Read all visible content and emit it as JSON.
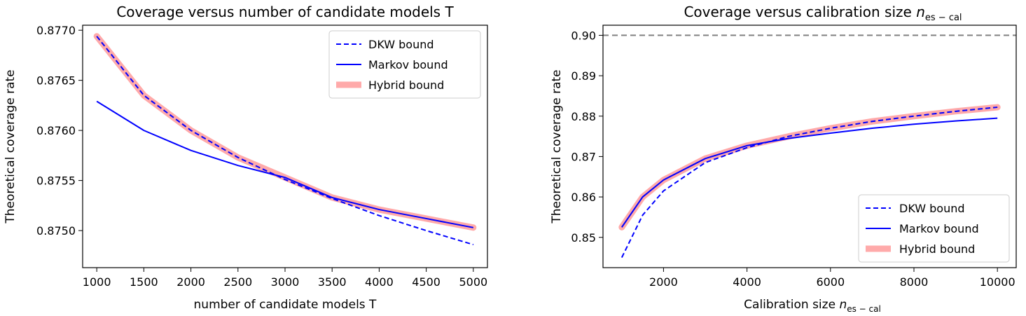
{
  "chart_data": [
    {
      "type": "line",
      "title": "Coverage versus number of candidate models T",
      "xlabel": "number of candidate models T",
      "ylabel": "Theoretical coverage rate",
      "xlim": [
        850,
        5150
      ],
      "ylim": [
        0.87463,
        0.87705
      ],
      "xticks": [
        1000,
        1500,
        2000,
        2500,
        3000,
        3500,
        4000,
        4500,
        5000
      ],
      "xtick_labels": [
        "1000",
        "1500",
        "2000",
        "2500",
        "3000",
        "3500",
        "4000",
        "4500",
        "5000"
      ],
      "yticks": [
        0.875,
        0.8755,
        0.876,
        0.8765,
        0.877
      ],
      "ytick_labels": [
        "0.8750",
        "0.8755",
        "0.8760",
        "0.8765",
        "0.8770"
      ],
      "legend_position": "upper right",
      "x": [
        1000,
        1500,
        2000,
        2500,
        3000,
        3500,
        4000,
        4500,
        5000
      ],
      "series": [
        {
          "name": "DKW bound",
          "style": "dashed",
          "color": "#0000ff",
          "values": [
            0.87694,
            0.87635,
            0.876,
            0.87573,
            0.87551,
            0.87532,
            0.87515,
            0.875,
            0.87486
          ]
        },
        {
          "name": "Markov bound",
          "style": "solid",
          "color": "#0000ff",
          "values": [
            0.87629,
            0.876,
            0.8758,
            0.87565,
            0.87553,
            0.87533,
            0.87521,
            0.87512,
            0.87503
          ]
        },
        {
          "name": "Hybrid bound",
          "style": "thick",
          "color": "#ffaaaa",
          "values": [
            0.87694,
            0.87635,
            0.876,
            0.87573,
            0.87553,
            0.87533,
            0.87521,
            0.87512,
            0.87503
          ]
        }
      ],
      "reference_line": null
    },
    {
      "type": "line",
      "title": "Coverage versus calibration size ",
      "title_math": "n",
      "title_math_sub": "es − cal",
      "xlabel": "Calibration size ",
      "xlabel_math": "n",
      "xlabel_math_sub": "es − cal",
      "ylabel": "Theoretical coverage rate",
      "xlim": [
        550,
        10450
      ],
      "ylim": [
        0.8425,
        0.9025
      ],
      "xticks": [
        2000,
        4000,
        6000,
        8000,
        10000
      ],
      "xtick_labels": [
        "2000",
        "4000",
        "6000",
        "8000",
        "10000"
      ],
      "yticks": [
        0.85,
        0.86,
        0.87,
        0.88,
        0.89,
        0.9
      ],
      "ytick_labels": [
        "0.85",
        "0.86",
        "0.87",
        "0.88",
        "0.89",
        "0.90"
      ],
      "legend_position": "lower right",
      "x": [
        1000,
        1500,
        2000,
        3000,
        4000,
        5000,
        6000,
        7000,
        8000,
        9000,
        10000
      ],
      "series": [
        {
          "name": "DKW bound",
          "style": "dashed",
          "color": "#0000ff",
          "values": [
            0.845,
            0.8555,
            0.8615,
            0.8685,
            0.8722,
            0.875,
            0.877,
            0.8787,
            0.88,
            0.8812,
            0.8822
          ]
        },
        {
          "name": "Markov bound",
          "style": "solid",
          "color": "#0000ff",
          "values": [
            0.8525,
            0.86,
            0.8642,
            0.8695,
            0.8727,
            0.8745,
            0.8758,
            0.877,
            0.878,
            0.8788,
            0.8795
          ]
        },
        {
          "name": "Hybrid bound",
          "style": "thick",
          "color": "#ffaaaa",
          "values": [
            0.8525,
            0.86,
            0.8642,
            0.8695,
            0.8727,
            0.875,
            0.877,
            0.8787,
            0.88,
            0.8812,
            0.8822
          ]
        }
      ],
      "reference_line": {
        "y": 0.9,
        "style": "dashed",
        "color": "#808080"
      }
    }
  ]
}
